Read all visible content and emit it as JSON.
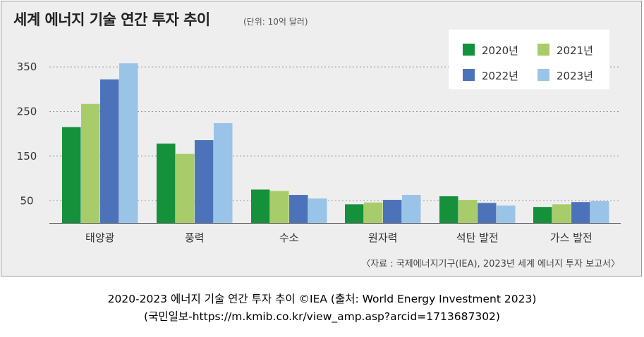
{
  "chart_data": {
    "type": "bar",
    "title": "세계 에너지 기술 연간 투자 추이",
    "unit_label": "(단위: 10억 달러)",
    "categories": [
      "태양광",
      "풍력",
      "수소",
      "원자력",
      "석탄 발전",
      "가스 발전"
    ],
    "series": [
      {
        "name": "2020년",
        "color": "#14913a",
        "values": [
          215,
          178,
          75,
          42,
          60,
          36
        ]
      },
      {
        "name": "2021년",
        "color": "#a9cc6a",
        "values": [
          267,
          155,
          72,
          46,
          52,
          42
        ]
      },
      {
        "name": "2022년",
        "color": "#4c73ba",
        "values": [
          322,
          186,
          63,
          52,
          45,
          47
        ]
      },
      {
        "name": "2023년",
        "color": "#9ac4e7",
        "values": [
          358,
          224,
          55,
          63,
          39,
          49
        ]
      }
    ],
    "y_ticks": [
      50,
      150,
      250,
      350
    ],
    "ylim": [
      0,
      400
    ],
    "grid": "horizontal dashed",
    "legend_position": "top-right",
    "source_note": "〈자료 : 국제에너지기구(IEA), 2023년 세계 에너지 투자 보고서〉"
  },
  "caption": {
    "line1": "2020-2023 에너지 기술 연간 투자 추이 ©IEA (출처: World Energy Investment 2023)",
    "line2": "(국민일보-https://m.kmib.co.kr/view_amp.asp?arcid=1713687302)"
  }
}
